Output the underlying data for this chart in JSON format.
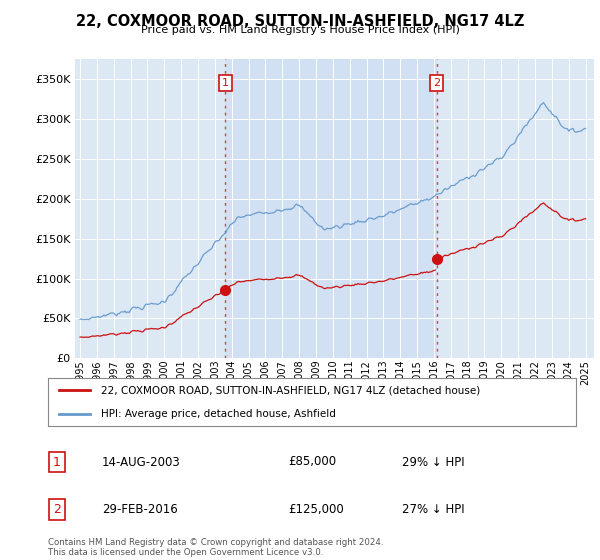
{
  "title": "22, COXMOOR ROAD, SUTTON-IN-ASHFIELD, NG17 4LZ",
  "subtitle": "Price paid vs. HM Land Registry's House Price Index (HPI)",
  "ylim": [
    0,
    375000
  ],
  "yticks": [
    0,
    50000,
    100000,
    150000,
    200000,
    250000,
    300000,
    350000
  ],
  "ytick_labels": [
    "£0",
    "£50K",
    "£100K",
    "£150K",
    "£200K",
    "£250K",
    "£300K",
    "£350K"
  ],
  "xlim_start": 1994.7,
  "xlim_end": 2025.5,
  "bg_color": "#dce9f5",
  "hpi_color": "#6699cc",
  "price_color": "#cc1111",
  "vline_color": "#cc3333",
  "purchase1_year": 2003.617,
  "purchase1_price": 85000,
  "purchase2_year": 2016.164,
  "purchase2_price": 125000,
  "legend_line1": "22, COXMOOR ROAD, SUTTON-IN-ASHFIELD, NG17 4LZ (detached house)",
  "legend_line2": "HPI: Average price, detached house, Ashfield",
  "annotation1_date": "14-AUG-2003",
  "annotation1_price": "£85,000",
  "annotation1_pct": "29% ↓ HPI",
  "annotation2_date": "29-FEB-2016",
  "annotation2_price": "£125,000",
  "annotation2_pct": "27% ↓ HPI",
  "footer": "Contains HM Land Registry data © Crown copyright and database right 2024.\nThis data is licensed under the Open Government Licence v3.0.",
  "xticks": [
    1995,
    1996,
    1997,
    1998,
    1999,
    2000,
    2001,
    2002,
    2003,
    2004,
    2005,
    2006,
    2007,
    2008,
    2009,
    2010,
    2011,
    2012,
    2013,
    2014,
    2015,
    2016,
    2017,
    2018,
    2019,
    2020,
    2021,
    2022,
    2023,
    2024,
    2025
  ]
}
